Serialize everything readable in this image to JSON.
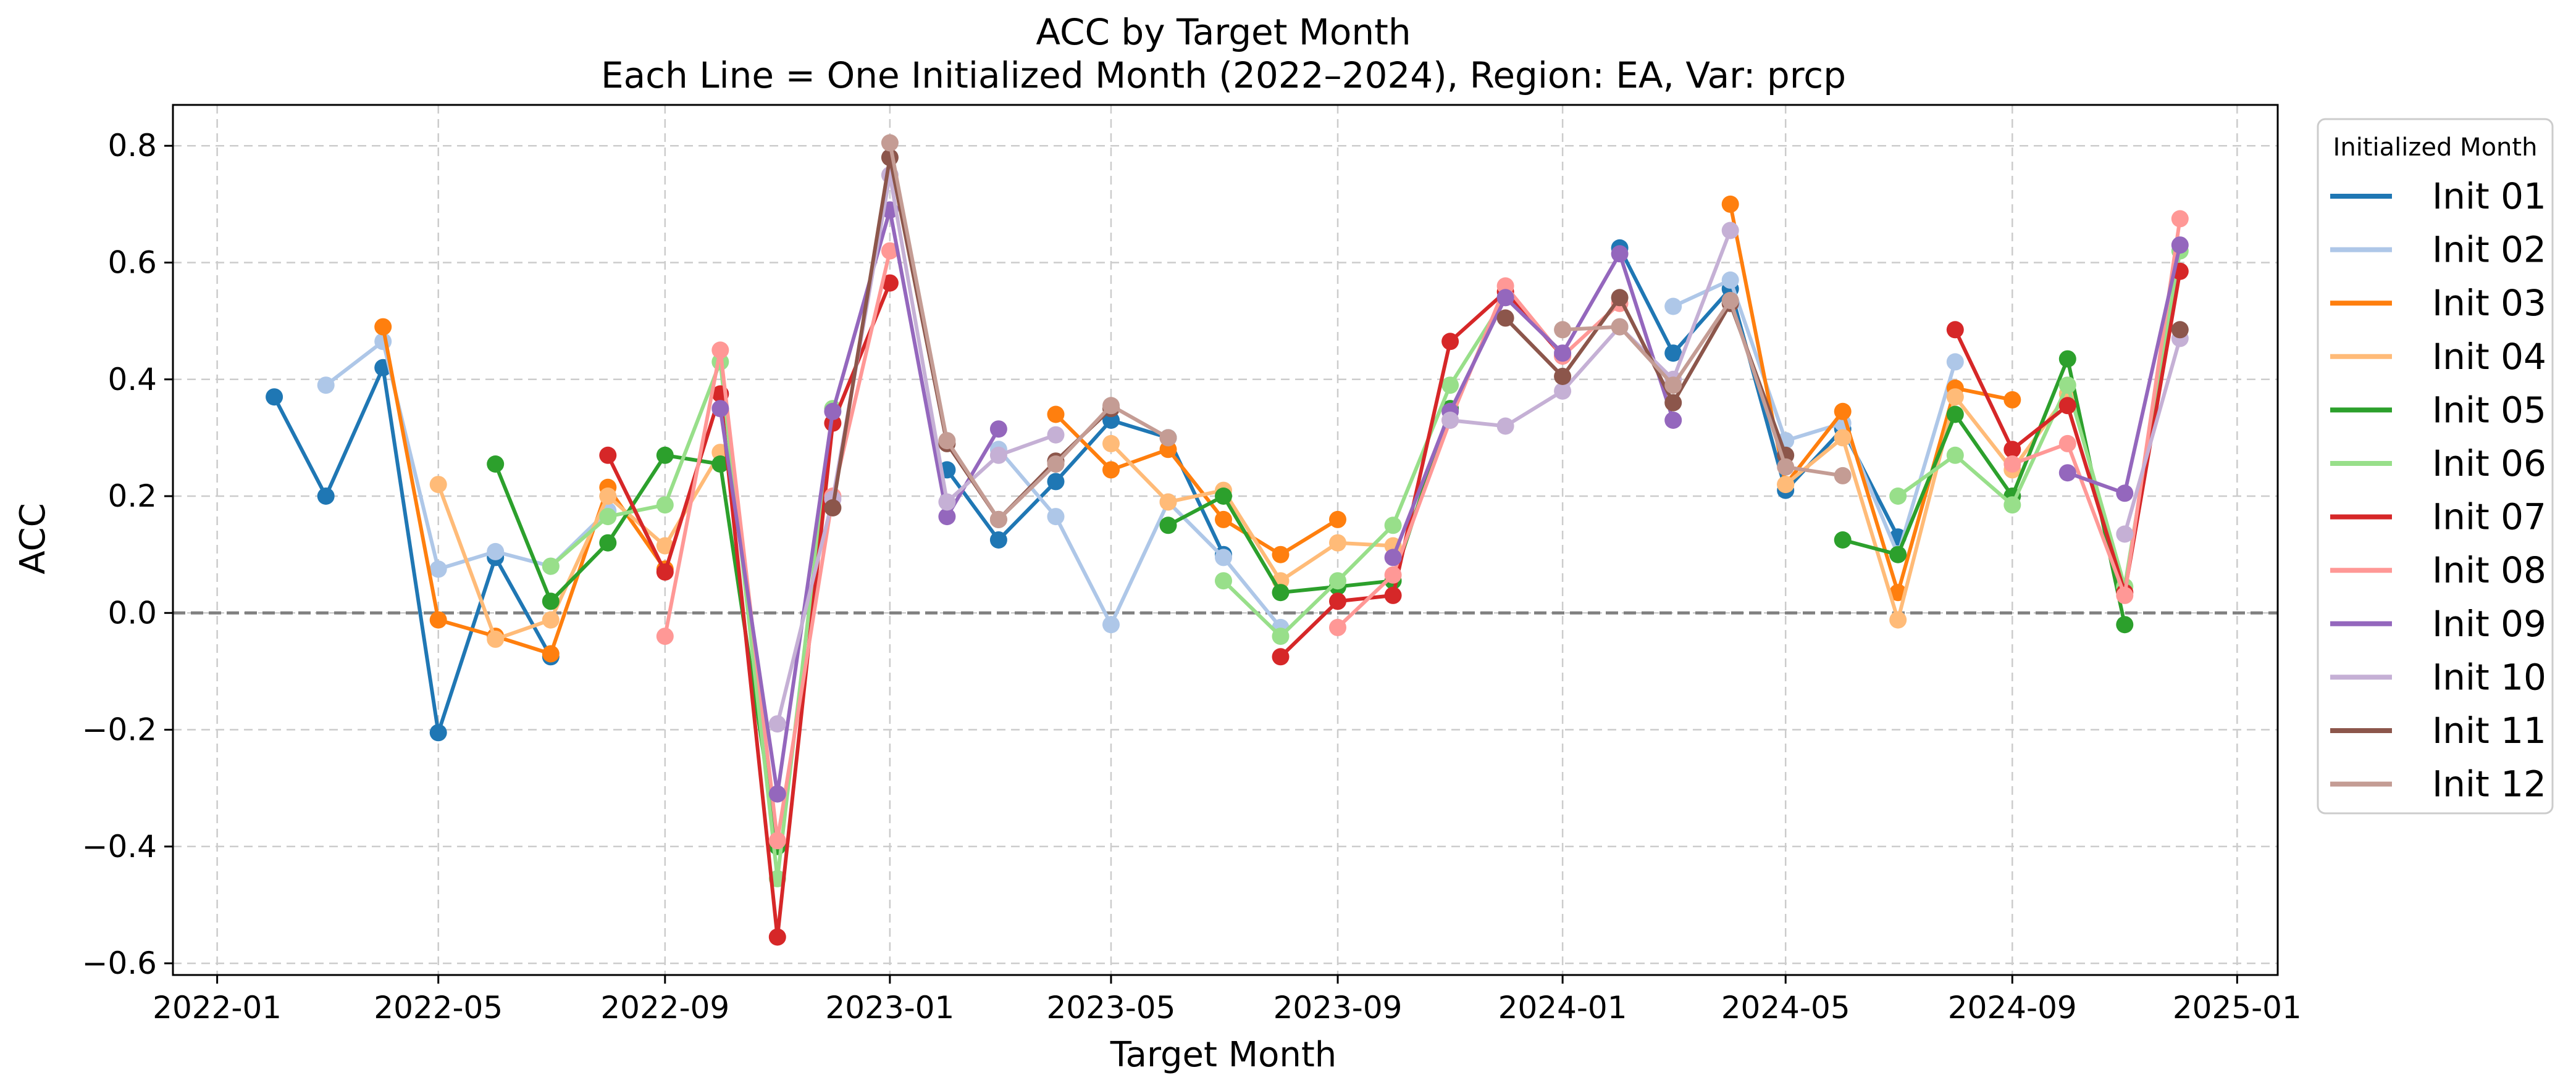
{
  "chart_data": {
    "type": "line",
    "title": "ACC by Target Month",
    "subtitle": "Each Line = One Initialized Month (2022–2024), Region: EA, Var: prcp",
    "xlabel": "Target Month",
    "ylabel": "ACC",
    "xlim": [
      "2021-12-08",
      "2025-01-23"
    ],
    "ylim": [
      -0.62,
      0.87
    ],
    "x_ticks": [
      "2022-01",
      "2022-05",
      "2022-09",
      "2023-01",
      "2023-05",
      "2023-09",
      "2024-01",
      "2024-05",
      "2024-09",
      "2025-01"
    ],
    "y_ticks": [
      -0.6,
      -0.4,
      -0.2,
      0.0,
      0.2,
      0.4,
      0.6,
      0.8
    ],
    "grid": true,
    "reference_line": 0.0,
    "legend_title": "Initialized Month",
    "legend_position": "outside-right",
    "series": [
      {
        "name": "Init 01",
        "color": "#1f77b4",
        "points": [
          [
            "2022-02",
            0.37
          ],
          [
            "2022-03",
            0.2
          ],
          [
            "2022-04",
            0.42
          ],
          [
            "2022-05",
            -0.205
          ],
          [
            "2022-06",
            0.095
          ],
          [
            "2022-07",
            -0.075
          ],
          [
            "2023-02",
            0.245
          ],
          [
            "2023-03",
            0.125
          ],
          [
            "2023-04",
            0.225
          ],
          [
            "2023-05",
            0.33
          ],
          [
            "2023-06",
            0.3
          ],
          [
            "2023-07",
            0.1
          ],
          [
            "2024-02",
            0.625
          ],
          [
            "2024-03",
            0.445
          ],
          [
            "2024-04",
            0.555
          ],
          [
            "2024-05",
            0.21
          ],
          [
            "2024-06",
            0.315
          ],
          [
            "2024-07",
            0.13
          ]
        ]
      },
      {
        "name": "Init 02",
        "color": "#aec7e8",
        "points": [
          [
            "2022-03",
            0.39
          ],
          [
            "2022-04",
            0.465
          ],
          [
            "2022-05",
            0.075
          ],
          [
            "2022-06",
            0.105
          ],
          [
            "2022-07",
            0.08
          ],
          [
            "2022-08",
            0.175
          ],
          [
            "2023-03",
            0.28
          ],
          [
            "2023-04",
            0.165
          ],
          [
            "2023-05",
            -0.02
          ],
          [
            "2023-06",
            0.19
          ],
          [
            "2023-07",
            0.095
          ],
          [
            "2023-08",
            -0.025
          ],
          [
            "2024-03",
            0.525
          ],
          [
            "2024-04",
            0.57
          ],
          [
            "2024-05",
            0.295
          ],
          [
            "2024-06",
            0.325
          ],
          [
            "2024-07",
            0.1
          ],
          [
            "2024-08",
            0.43
          ]
        ]
      },
      {
        "name": "Init 03",
        "color": "#ff7f0e",
        "points": [
          [
            "2022-04",
            0.49
          ],
          [
            "2022-05",
            -0.012
          ],
          [
            "2022-06",
            -0.04
          ],
          [
            "2022-07",
            -0.07
          ],
          [
            "2022-08",
            0.215
          ],
          [
            "2022-09",
            0.075
          ],
          [
            "2023-04",
            0.34
          ],
          [
            "2023-05",
            0.245
          ],
          [
            "2023-06",
            0.28
          ],
          [
            "2023-07",
            0.16
          ],
          [
            "2023-08",
            0.1
          ],
          [
            "2023-09",
            0.16
          ],
          [
            "2024-04",
            0.7
          ],
          [
            "2024-05",
            0.22
          ],
          [
            "2024-06",
            0.345
          ],
          [
            "2024-07",
            0.035
          ],
          [
            "2024-08",
            0.385
          ],
          [
            "2024-09",
            0.365
          ]
        ]
      },
      {
        "name": "Init 04",
        "color": "#ffbb78",
        "points": [
          [
            "2022-05",
            0.22
          ],
          [
            "2022-06",
            -0.045
          ],
          [
            "2022-07",
            -0.012
          ],
          [
            "2022-08",
            0.2
          ],
          [
            "2022-09",
            0.115
          ],
          [
            "2022-10",
            0.275
          ],
          [
            "2023-05",
            0.29
          ],
          [
            "2023-06",
            0.19
          ],
          [
            "2023-07",
            0.21
          ],
          [
            "2023-08",
            0.055
          ],
          [
            "2023-09",
            0.12
          ],
          [
            "2023-10",
            0.115
          ],
          [
            "2024-05",
            0.22
          ],
          [
            "2024-06",
            0.3
          ],
          [
            "2024-07",
            -0.012
          ],
          [
            "2024-08",
            0.37
          ],
          [
            "2024-09",
            0.245
          ],
          [
            "2024-10",
            0.375
          ]
        ]
      },
      {
        "name": "Init 05",
        "color": "#2ca02c",
        "points": [
          [
            "2022-06",
            0.255
          ],
          [
            "2022-07",
            0.02
          ],
          [
            "2022-08",
            0.12
          ],
          [
            "2022-09",
            0.27
          ],
          [
            "2022-10",
            0.255
          ],
          [
            "2022-11",
            -0.4
          ],
          [
            "2023-06",
            0.15
          ],
          [
            "2023-07",
            0.2
          ],
          [
            "2023-08",
            0.035
          ],
          [
            "2023-09",
            0.045
          ],
          [
            "2023-10",
            0.055
          ],
          [
            "2023-11",
            0.35
          ],
          [
            "2024-06",
            0.125
          ],
          [
            "2024-07",
            0.1
          ],
          [
            "2024-08",
            0.34
          ],
          [
            "2024-09",
            0.2
          ],
          [
            "2024-10",
            0.435
          ],
          [
            "2024-11",
            -0.02
          ]
        ]
      },
      {
        "name": "Init 06",
        "color": "#98df8a",
        "points": [
          [
            "2022-07",
            0.08
          ],
          [
            "2022-08",
            0.165
          ],
          [
            "2022-09",
            0.185
          ],
          [
            "2022-10",
            0.43
          ],
          [
            "2022-11",
            -0.455
          ],
          [
            "2022-12",
            0.35
          ],
          [
            "2023-07",
            0.055
          ],
          [
            "2023-08",
            -0.04
          ],
          [
            "2023-09",
            0.055
          ],
          [
            "2023-10",
            0.15
          ],
          [
            "2023-11",
            0.39
          ],
          [
            "2023-12",
            0.54
          ],
          [
            "2024-07",
            0.2
          ],
          [
            "2024-08",
            0.27
          ],
          [
            "2024-09",
            0.185
          ],
          [
            "2024-10",
            0.39
          ],
          [
            "2024-11",
            0.045
          ],
          [
            "2024-12",
            0.62
          ]
        ]
      },
      {
        "name": "Init 07",
        "color": "#d62728",
        "points": [
          [
            "2022-08",
            0.27
          ],
          [
            "2022-09",
            0.07
          ],
          [
            "2022-10",
            0.375
          ],
          [
            "2022-11",
            -0.555
          ],
          [
            "2022-12",
            0.325
          ],
          [
            "2023-01",
            0.565
          ],
          [
            "2023-08",
            -0.075
          ],
          [
            "2023-09",
            0.02
          ],
          [
            "2023-10",
            0.03
          ],
          [
            "2023-11",
            0.465
          ],
          [
            "2023-12",
            0.55
          ],
          [
            "2024-01",
            0.44
          ],
          [
            "2024-08",
            0.485
          ],
          [
            "2024-09",
            0.28
          ],
          [
            "2024-10",
            0.355
          ],
          [
            "2024-11",
            0.035
          ],
          [
            "2024-12",
            0.585
          ]
        ]
      },
      {
        "name": "Init 08",
        "color": "#ff9896",
        "points": [
          [
            "2022-09",
            -0.04
          ],
          [
            "2022-10",
            0.45
          ],
          [
            "2022-11",
            -0.39
          ],
          [
            "2022-12",
            0.2
          ],
          [
            "2023-01",
            0.62
          ],
          [
            "2023-09",
            -0.025
          ],
          [
            "2023-10",
            0.065
          ],
          [
            "2023-11",
            0.33
          ],
          [
            "2023-12",
            0.56
          ],
          [
            "2024-01",
            0.44
          ],
          [
            "2024-02",
            0.53
          ],
          [
            "2024-09",
            0.255
          ],
          [
            "2024-10",
            0.29
          ],
          [
            "2024-11",
            0.03
          ],
          [
            "2024-12",
            0.675
          ]
        ]
      },
      {
        "name": "Init 09",
        "color": "#9467bd",
        "points": [
          [
            "2022-10",
            0.35
          ],
          [
            "2022-11",
            -0.31
          ],
          [
            "2022-12",
            0.345
          ],
          [
            "2023-01",
            0.69
          ],
          [
            "2023-02",
            0.165
          ],
          [
            "2023-03",
            0.315
          ],
          [
            "2023-10",
            0.095
          ],
          [
            "2023-11",
            0.345
          ],
          [
            "2023-12",
            0.54
          ],
          [
            "2024-01",
            0.445
          ],
          [
            "2024-02",
            0.615
          ],
          [
            "2024-03",
            0.33
          ],
          [
            "2024-10",
            0.24
          ],
          [
            "2024-11",
            0.205
          ],
          [
            "2024-12",
            0.63
          ]
        ]
      },
      {
        "name": "Init 10",
        "color": "#c5b0d5",
        "points": [
          [
            "2022-11",
            -0.19
          ],
          [
            "2022-12",
            0.195
          ],
          [
            "2023-01",
            0.75
          ],
          [
            "2023-02",
            0.19
          ],
          [
            "2023-03",
            0.27
          ],
          [
            "2023-04",
            0.305
          ],
          [
            "2023-11",
            0.33
          ],
          [
            "2023-12",
            0.32
          ],
          [
            "2024-01",
            0.38
          ],
          [
            "2024-02",
            0.49
          ],
          [
            "2024-03",
            0.4
          ],
          [
            "2024-04",
            0.655
          ],
          [
            "2024-11",
            0.135
          ],
          [
            "2024-12",
            0.47
          ]
        ]
      },
      {
        "name": "Init 11",
        "color": "#8c564b",
        "points": [
          [
            "2022-12",
            0.18
          ],
          [
            "2023-01",
            0.78
          ],
          [
            "2023-02",
            0.29
          ],
          [
            "2023-03",
            0.16
          ],
          [
            "2023-04",
            0.26
          ],
          [
            "2023-05",
            0.35
          ],
          [
            "2023-12",
            0.505
          ],
          [
            "2024-01",
            0.405
          ],
          [
            "2024-02",
            0.54
          ],
          [
            "2024-03",
            0.36
          ],
          [
            "2024-04",
            0.53
          ],
          [
            "2024-05",
            0.27
          ],
          [
            "2024-12",
            0.485
          ]
        ]
      },
      {
        "name": "Init 12",
        "color": "#c49c94",
        "points": [
          [
            "2023-01",
            0.805
          ],
          [
            "2023-02",
            0.295
          ],
          [
            "2023-03",
            0.16
          ],
          [
            "2023-04",
            0.255
          ],
          [
            "2023-05",
            0.355
          ],
          [
            "2023-06",
            0.3
          ],
          [
            "2024-01",
            0.485
          ],
          [
            "2024-02",
            0.49
          ],
          [
            "2024-03",
            0.39
          ],
          [
            "2024-04",
            0.535
          ],
          [
            "2024-05",
            0.25
          ],
          [
            "2024-06",
            0.235
          ]
        ]
      }
    ]
  }
}
